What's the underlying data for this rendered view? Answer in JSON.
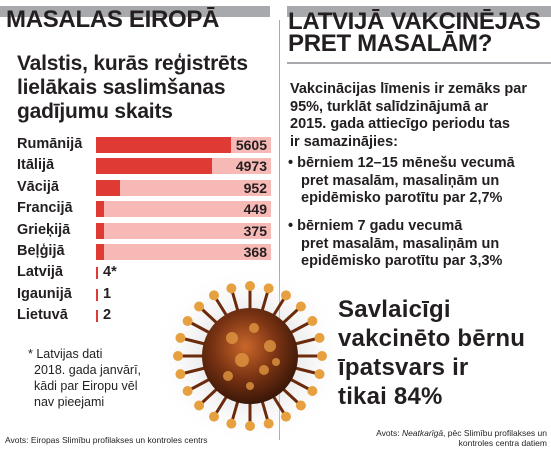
{
  "left_header": "MASALAS EIROPĀ",
  "right_header": [
    "LATVIJĀ VAKCINĒJAS",
    "PRET MASALĀM?"
  ],
  "chart_data": {
    "type": "bar",
    "title": [
      "Valstis, kurās reģistrēts",
      "lielākais saslimšanas",
      "gadījumu skaits"
    ],
    "categories": [
      "Rumānijā",
      "Itālijā",
      "Vācijā",
      "Francijā",
      "Grieķijā",
      "Beļģijā",
      "Latvijā",
      "Igaunijā",
      "Lietuvā"
    ],
    "values": [
      5605,
      4973,
      952,
      449,
      375,
      368,
      4,
      1,
      2
    ],
    "value_labels": [
      "5605",
      "4973",
      "952",
      "449",
      "375",
      "368",
      "4*",
      "1",
      "2"
    ],
    "colors": {
      "fill": "#e03a35",
      "track": "#f7b9b6"
    }
  },
  "note": [
    "* Latvijas dati",
    "2018. gada janvārī,",
    "kādi par Eiropu vēl",
    "nav pieejami"
  ],
  "left_source": "Avots: Eiropas Slimību profilakses un kontroles centrs",
  "intro": [
    "Vakcinācijas līmenis ir zemāks par",
    "95%, turklāt salīdzinājumā ar",
    "2015. gada attiecīgo periodu tas",
    "ir samazinājies:"
  ],
  "bullets": [
    [
      "• bērniem 12–15 mēnešu vecumā",
      "pret masalām, masaliņām un",
      "epidēmisko parotītu par 2,7%"
    ],
    [
      "• bērniem 7 gadu vecumā",
      "pret masalām, masaliņām un",
      "epidēmisko parotītu par 3,3%"
    ]
  ],
  "big": [
    "Savlaicīgi",
    "vakcinēto bērnu",
    "īpatsvars ir",
    "tikai 84%"
  ],
  "right_source_prefix": "Avots: ",
  "right_source_italic": "Neatkarīgā",
  "right_source_rest": ", pēc Slimību profilakses un",
  "right_source_line2": "kontroles centra datiem"
}
